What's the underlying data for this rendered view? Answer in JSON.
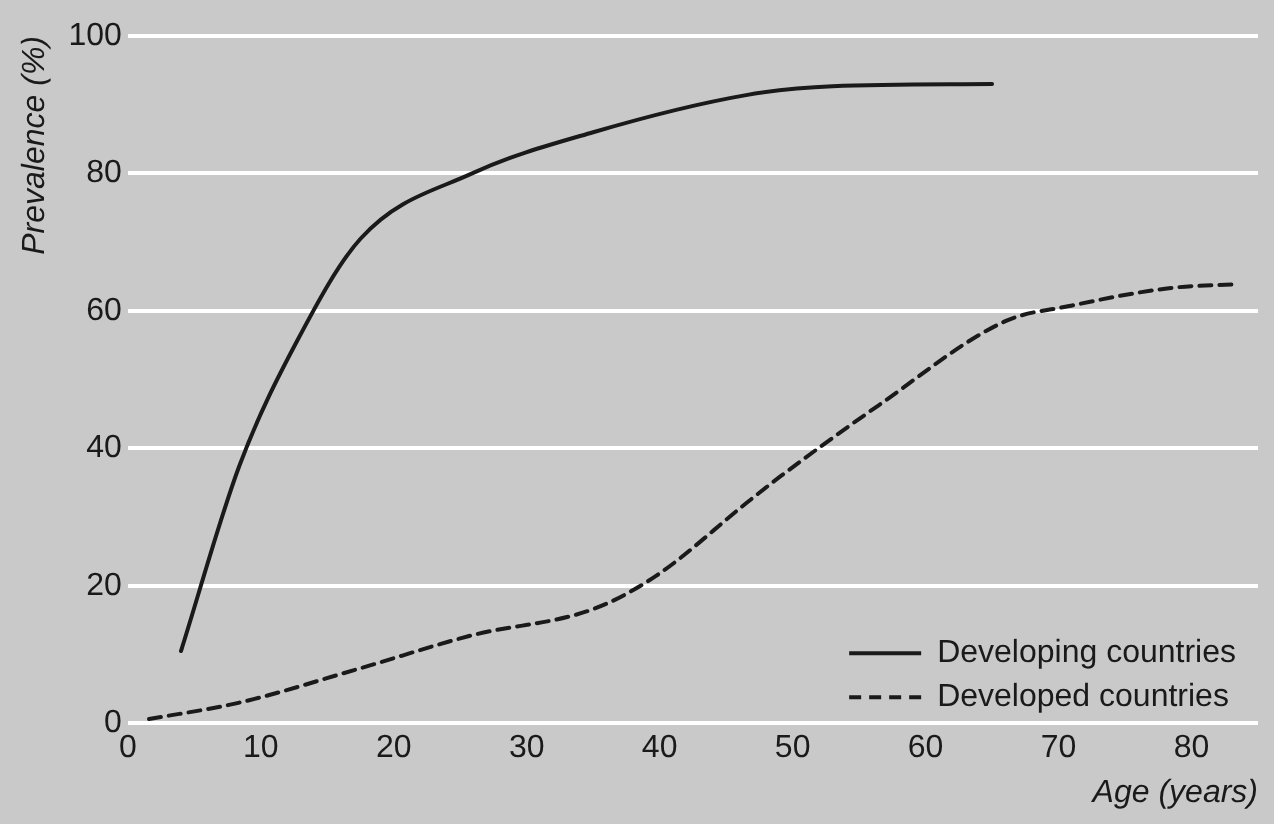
{
  "chart_data": {
    "type": "line",
    "xlabel": "Age (years)",
    "ylabel": "Prevalence (%)",
    "series": [
      {
        "name": "Developing countries",
        "color": "#1a1a1a",
        "line_style": "solid",
        "x": [
          4,
          8.4,
          12.7,
          17.5,
          25.9,
          35,
          46.5,
          53,
          65
        ],
        "values": [
          10.5,
          37.5,
          55.5,
          70.5,
          80,
          86,
          91.4,
          92.7,
          93
        ]
      },
      {
        "name": "Developed countries",
        "color": "#1a1a1a",
        "line_style": "dashed",
        "x": [
          1.6,
          8.4,
          17.5,
          25.9,
          35,
          39.7,
          46.5,
          49,
          56.5,
          66,
          70.8,
          78.3,
          83.5
        ],
        "values": [
          0.6,
          3,
          8,
          12.8,
          16.6,
          21.4,
          32,
          35.8,
          46.3,
          58.5,
          60.7,
          63.3,
          63.9
        ]
      }
    ],
    "xlim": [
      0,
      85
    ],
    "xticks": [
      0,
      10,
      20,
      30,
      40,
      50,
      60,
      70,
      80
    ],
    "ylim": [
      0,
      100
    ],
    "yticks": [
      0,
      20,
      40,
      60,
      80,
      100
    ],
    "grid": "y",
    "legend": "bottom right",
    "marker": "none"
  }
}
